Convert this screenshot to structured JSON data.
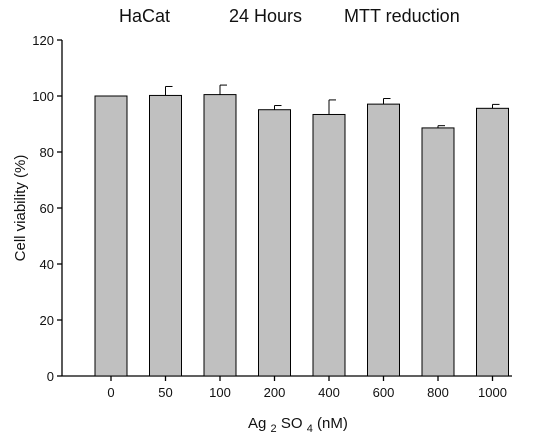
{
  "chart_data": {
    "type": "bar",
    "title_parts": [
      "HaCat",
      "24 Hours",
      "MTT reduction"
    ],
    "xlabel": {
      "base": "Ag",
      "sub1": "2",
      "mid": "SO",
      "sub2": "4",
      "unit": " (nM)"
    },
    "ylabel": "Cell viability (%)",
    "ylim": [
      0,
      120
    ],
    "yticks": [
      0,
      20,
      40,
      60,
      80,
      100,
      120
    ],
    "categories": [
      "0",
      "50",
      "100",
      "200",
      "400",
      "600",
      "800",
      "1000"
    ],
    "values": [
      100,
      100.2,
      100.5,
      95.1,
      93.4,
      97.1,
      88.6,
      95.6
    ],
    "errors": [
      0,
      3.2,
      3.4,
      1.5,
      5.2,
      2.0,
      0.8,
      1.4
    ],
    "colors": {
      "bar": "#c0c0c0",
      "stroke": "#000000"
    }
  }
}
